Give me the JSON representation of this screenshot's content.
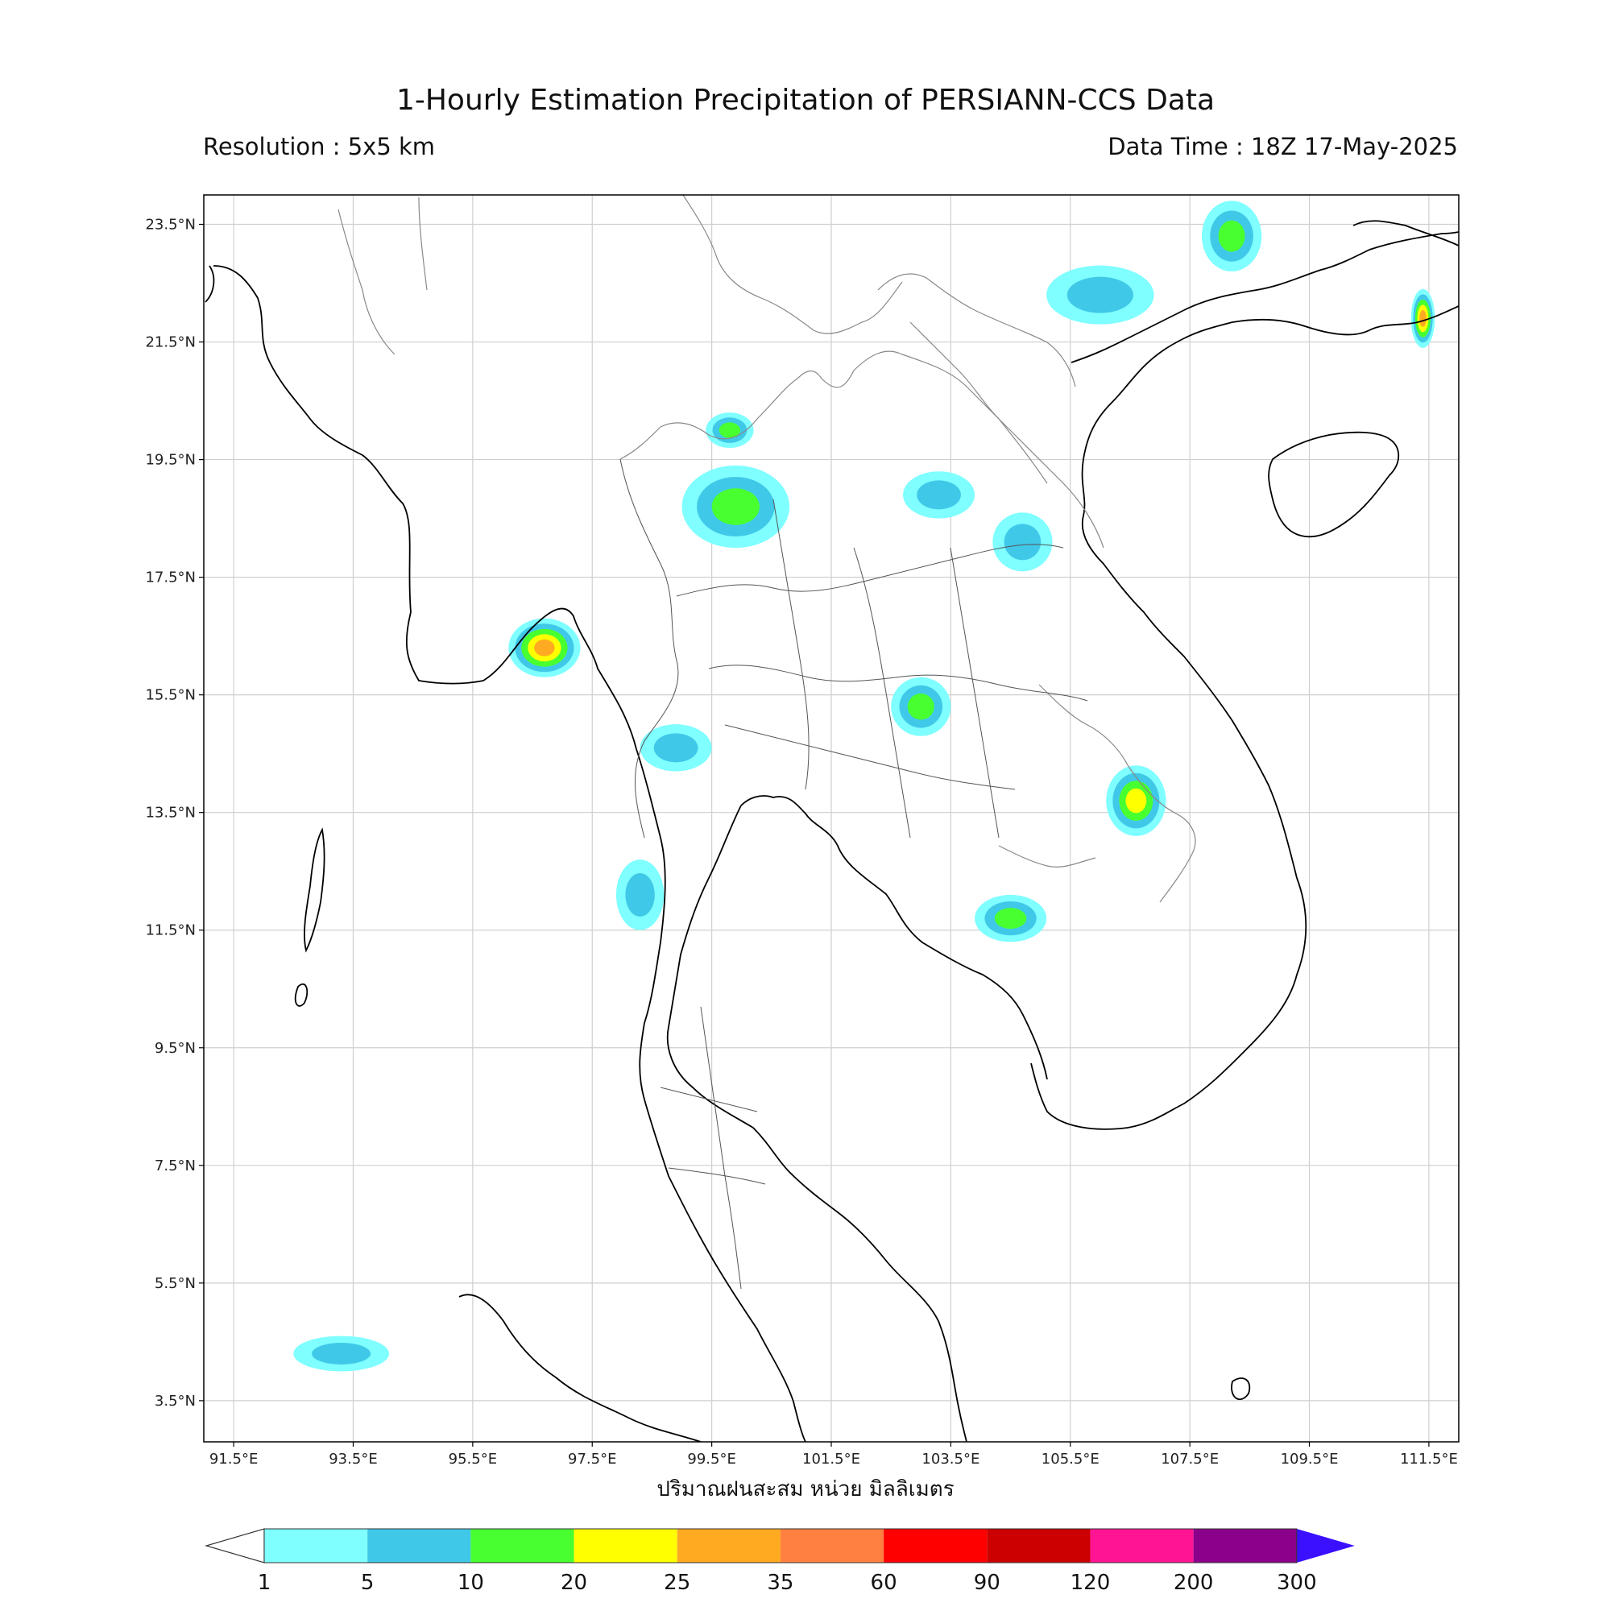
{
  "title": "1-Hourly Estimation Precipitation of PERSIANN-CCS Data",
  "resolution_text": "Resolution : 5x5 km",
  "data_time_text": "Data Time : 18Z 17-May-2025",
  "x_axis_label": "ปริมาณฝนสะสม หน่วย มิลลิเมตร",
  "lon_ticks": [
    "91.5°E",
    "93.5°E",
    "95.5°E",
    "97.5°E",
    "99.5°E",
    "101.5°E",
    "103.5°E",
    "105.5°E",
    "107.5°E",
    "109.5°E",
    "111.5°E"
  ],
  "lat_ticks": [
    "23.5°N",
    "21.5°N",
    "19.5°N",
    "17.5°N",
    "15.5°N",
    "13.5°N",
    "11.5°N",
    "9.5°N",
    "7.5°N",
    "5.5°N",
    "3.5°N"
  ],
  "colorbar": {
    "levels": [
      "1",
      "5",
      "10",
      "20",
      "25",
      "35",
      "60",
      "90",
      "120",
      "200",
      "300"
    ],
    "colors": [
      "#7fffff",
      "#40c8e8",
      "#48ff30",
      "#ffff00",
      "#ffaa20",
      "#ff8040",
      "#ff0000",
      "#cc0000",
      "#ff1493",
      "#8b008b",
      "#3a10ff"
    ]
  },
  "rain_cells": [
    {
      "lon": 99.9,
      "lat": 18.7,
      "rx": 0.9,
      "ry": 0.7,
      "level": 10
    },
    {
      "lon": 99.8,
      "lat": 20.0,
      "rx": 0.4,
      "ry": 0.3,
      "level": 10
    },
    {
      "lon": 103.0,
      "lat": 15.3,
      "rx": 0.5,
      "ry": 0.5,
      "level": 10
    },
    {
      "lon": 106.6,
      "lat": 13.7,
      "rx": 0.5,
      "ry": 0.6,
      "level": 20
    },
    {
      "lon": 104.5,
      "lat": 11.7,
      "rx": 0.6,
      "ry": 0.4,
      "level": 10
    },
    {
      "lon": 106.0,
      "lat": 22.3,
      "rx": 0.9,
      "ry": 0.5,
      "level": 5
    },
    {
      "lon": 108.2,
      "lat": 23.3,
      "rx": 0.5,
      "ry": 0.6,
      "level": 10
    },
    {
      "lon": 103.3,
      "lat": 18.9,
      "rx": 0.6,
      "ry": 0.4,
      "level": 5
    },
    {
      "lon": 104.7,
      "lat": 18.1,
      "rx": 0.5,
      "ry": 0.5,
      "level": 5
    },
    {
      "lon": 96.7,
      "lat": 16.3,
      "rx": 0.6,
      "ry": 0.5,
      "level": 25
    },
    {
      "lon": 98.9,
      "lat": 14.6,
      "rx": 0.6,
      "ry": 0.4,
      "level": 5
    },
    {
      "lon": 93.3,
      "lat": 4.3,
      "rx": 0.8,
      "ry": 0.3,
      "level": 5
    },
    {
      "lon": 111.4,
      "lat": 21.9,
      "rx": 0.2,
      "ry": 0.5,
      "level": 25
    },
    {
      "lon": 98.3,
      "lat": 12.1,
      "rx": 0.4,
      "ry": 0.6,
      "level": 5
    }
  ]
}
